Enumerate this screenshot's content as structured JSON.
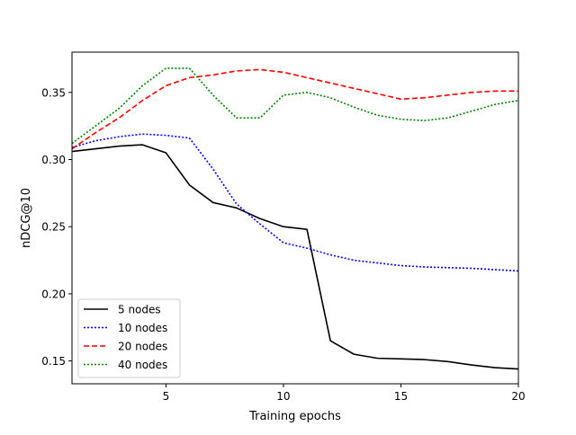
{
  "chart_data": {
    "type": "line",
    "title": "",
    "xlabel": "Training epochs",
    "ylabel": "nDCG@10",
    "xlim": [
      1,
      20
    ],
    "ylim": [
      0.133,
      0.38
    ],
    "xticks": [
      5,
      10,
      15,
      20
    ],
    "yticks": [
      0.15,
      0.2,
      0.25,
      0.3,
      0.35
    ],
    "ytick_labels": [
      "0.15",
      "0.20",
      "0.25",
      "0.30",
      "0.35"
    ],
    "xtick_labels": [
      "5",
      "10",
      "15",
      "20"
    ],
    "grid": false,
    "legend_position": "lower-left",
    "x": [
      1,
      2,
      3,
      4,
      5,
      6,
      7,
      8,
      9,
      10,
      11,
      12,
      13,
      14,
      15,
      16,
      17,
      18,
      19,
      20
    ],
    "series": [
      {
        "name": "5 nodes",
        "color": "#000000",
        "style": "solid",
        "values": [
          0.306,
          0.308,
          0.31,
          0.311,
          0.305,
          0.281,
          0.268,
          0.264,
          0.256,
          0.25,
          0.248,
          0.165,
          0.155,
          0.152,
          0.1515,
          0.151,
          0.1495,
          0.147,
          0.145,
          0.144
        ]
      },
      {
        "name": "10 nodes",
        "color": "#0000ff",
        "style": "dotted",
        "values": [
          0.309,
          0.314,
          0.317,
          0.319,
          0.318,
          0.316,
          0.293,
          0.267,
          0.252,
          0.238,
          0.234,
          0.229,
          0.225,
          0.223,
          0.221,
          0.22,
          0.2195,
          0.219,
          0.218,
          0.217
        ]
      },
      {
        "name": "20 nodes",
        "color": "#ff0000",
        "style": "dashed",
        "values": [
          0.308,
          0.32,
          0.331,
          0.344,
          0.355,
          0.361,
          0.363,
          0.366,
          0.367,
          0.365,
          0.361,
          0.357,
          0.353,
          0.349,
          0.345,
          0.346,
          0.348,
          0.35,
          0.351,
          0.351
        ]
      },
      {
        "name": "40 nodes",
        "color": "#008000",
        "style": "dotted",
        "values": [
          0.312,
          0.325,
          0.338,
          0.355,
          0.368,
          0.368,
          0.348,
          0.331,
          0.331,
          0.348,
          0.35,
          0.346,
          0.339,
          0.333,
          0.33,
          0.329,
          0.331,
          0.336,
          0.341,
          0.344
        ]
      }
    ]
  }
}
